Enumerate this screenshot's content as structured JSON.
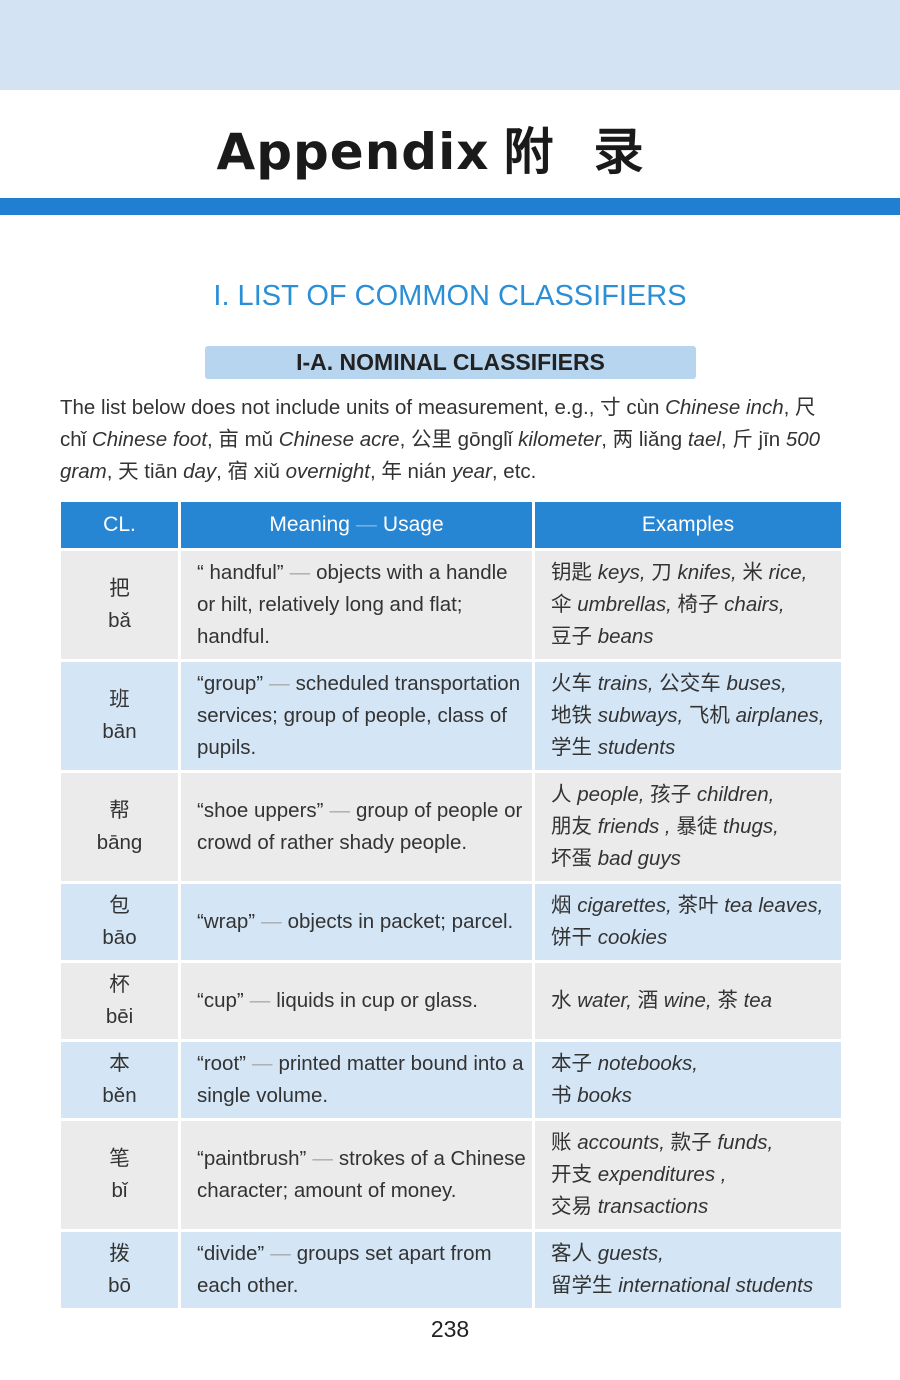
{
  "header": {
    "title_en": "Appendix",
    "title_zh": "附录"
  },
  "section_title": "I. LIST OF COMMON CLASSIFIERS",
  "subsection_title": "I-A. NOMINAL CLASSIFIERS",
  "intro": [
    {
      "t": "The list below does not include units of measurement, e.g., 寸 cùn "
    },
    {
      "t": "Chinese inch",
      "i": true
    },
    {
      "t": ", 尺 chǐ "
    },
    {
      "t": "Chinese foot",
      "i": true
    },
    {
      "t": ", 亩 mǔ "
    },
    {
      "t": "Chinese acre",
      "i": true
    },
    {
      "t": ", 公里 gōnglǐ "
    },
    {
      "t": "kilometer",
      "i": true
    },
    {
      "t": ", 两 liǎng "
    },
    {
      "t": "tael",
      "i": true
    },
    {
      "t": ", 斤 jīn "
    },
    {
      "t": "500 gram",
      "i": true
    },
    {
      "t": ", 天 tiān "
    },
    {
      "t": "day",
      "i": true
    },
    {
      "t": ", 宿 xiǔ "
    },
    {
      "t": "overnight",
      "i": true
    },
    {
      "t": ", 年 nián "
    },
    {
      "t": "year",
      "i": true
    },
    {
      "t": ", etc."
    }
  ],
  "table": {
    "headers": {
      "cl": "CL.",
      "meaning": "Meaning",
      "dash": "—",
      "usage": "Usage",
      "examples": "Examples"
    },
    "rows": [
      {
        "hanzi": "把",
        "pinyin": "bǎ",
        "term": "“ handful”",
        "usage": "objects with a handle or hilt, relatively long and flat; handful.",
        "examples": [
          [
            {
              "zh": "钥匙 ",
              "en": "keys, "
            },
            {
              "zh": "刀 ",
              "en": "knifes, "
            },
            {
              "zh": "米 ",
              "en": "rice,"
            }
          ],
          [
            {
              "zh": "伞 ",
              "en": "umbrellas, "
            },
            {
              "zh": "椅子 ",
              "en": "chairs,"
            }
          ],
          [
            {
              "zh": "豆子 ",
              "en": "beans"
            }
          ]
        ]
      },
      {
        "hanzi": "班",
        "pinyin": "bān",
        "term": "“group”",
        "usage": "scheduled transportation services; group of people, class of pupils.",
        "examples": [
          [
            {
              "zh": "火车 ",
              "en": "trains, "
            },
            {
              "zh": "公交车 ",
              "en": "buses,"
            }
          ],
          [
            {
              "zh": "地铁 ",
              "en": "subways, "
            },
            {
              "zh": "飞机 ",
              "en": "airplanes,"
            }
          ],
          [
            {
              "zh": "学生 ",
              "en": "students"
            }
          ]
        ]
      },
      {
        "hanzi": "帮",
        "pinyin": "bāng",
        "term": "“shoe uppers”",
        "usage": "group of people or crowd of rather shady people.",
        "examples": [
          [
            {
              "zh": "人 ",
              "en": "people, "
            },
            {
              "zh": "孩子 ",
              "en": "children,"
            }
          ],
          [
            {
              "zh": "朋友 ",
              "en": "friends , "
            },
            {
              "zh": "暴徒 ",
              "en": "thugs,"
            }
          ],
          [
            {
              "zh": "坏蛋 ",
              "en": "bad guys"
            }
          ]
        ]
      },
      {
        "hanzi": "包",
        "pinyin": "bāo",
        "term": "“wrap”",
        "usage": "objects in packet; parcel.",
        "examples": [
          [
            {
              "zh": "烟 ",
              "en": "cigarettes, "
            },
            {
              "zh": "茶叶 ",
              "en": "tea leaves,"
            }
          ],
          [
            {
              "zh": "饼干 ",
              "en": "cookies"
            }
          ]
        ]
      },
      {
        "hanzi": "杯",
        "pinyin": "bēi",
        "term": "“cup”",
        "usage": "liquids in cup or glass.",
        "examples": [
          [
            {
              "zh": "水 ",
              "en": "water, "
            },
            {
              "zh": "酒 ",
              "en": "wine, "
            },
            {
              "zh": "茶 ",
              "en": "tea"
            }
          ]
        ]
      },
      {
        "hanzi": "本",
        "pinyin": "běn",
        "term": "“root”",
        "usage": "printed matter bound into a single volume.",
        "examples": [
          [
            {
              "zh": "本子 ",
              "en": "notebooks,"
            }
          ],
          [
            {
              "zh": "书 ",
              "en": "books"
            }
          ]
        ]
      },
      {
        "hanzi": "笔",
        "pinyin": "bǐ",
        "term": "“paintbrush”",
        "usage": "strokes of a Chinese character; amount of money.",
        "examples": [
          [
            {
              "zh": "账 ",
              "en": "accounts, "
            },
            {
              "zh": "款子 ",
              "en": "funds,"
            }
          ],
          [
            {
              "zh": "开支 ",
              "en": "expenditures ,"
            }
          ],
          [
            {
              "zh": "交易 ",
              "en": "transactions"
            }
          ]
        ]
      },
      {
        "hanzi": "拨",
        "pinyin": "bō",
        "term": "“divide”",
        "usage": "groups set apart from each other.",
        "examples": [
          [
            {
              "zh": "客人 ",
              "en": "guests,"
            }
          ],
          [
            {
              "zh": "留学生 ",
              "en": "international students"
            }
          ]
        ]
      }
    ]
  },
  "page_number": "238",
  "colors": {
    "accent": "#1f7fd0",
    "header_band": "#d3e3f4",
    "row_gray": "#ebebeb",
    "row_blue": "#d4e5f5",
    "section_title": "#2a8fd6"
  }
}
